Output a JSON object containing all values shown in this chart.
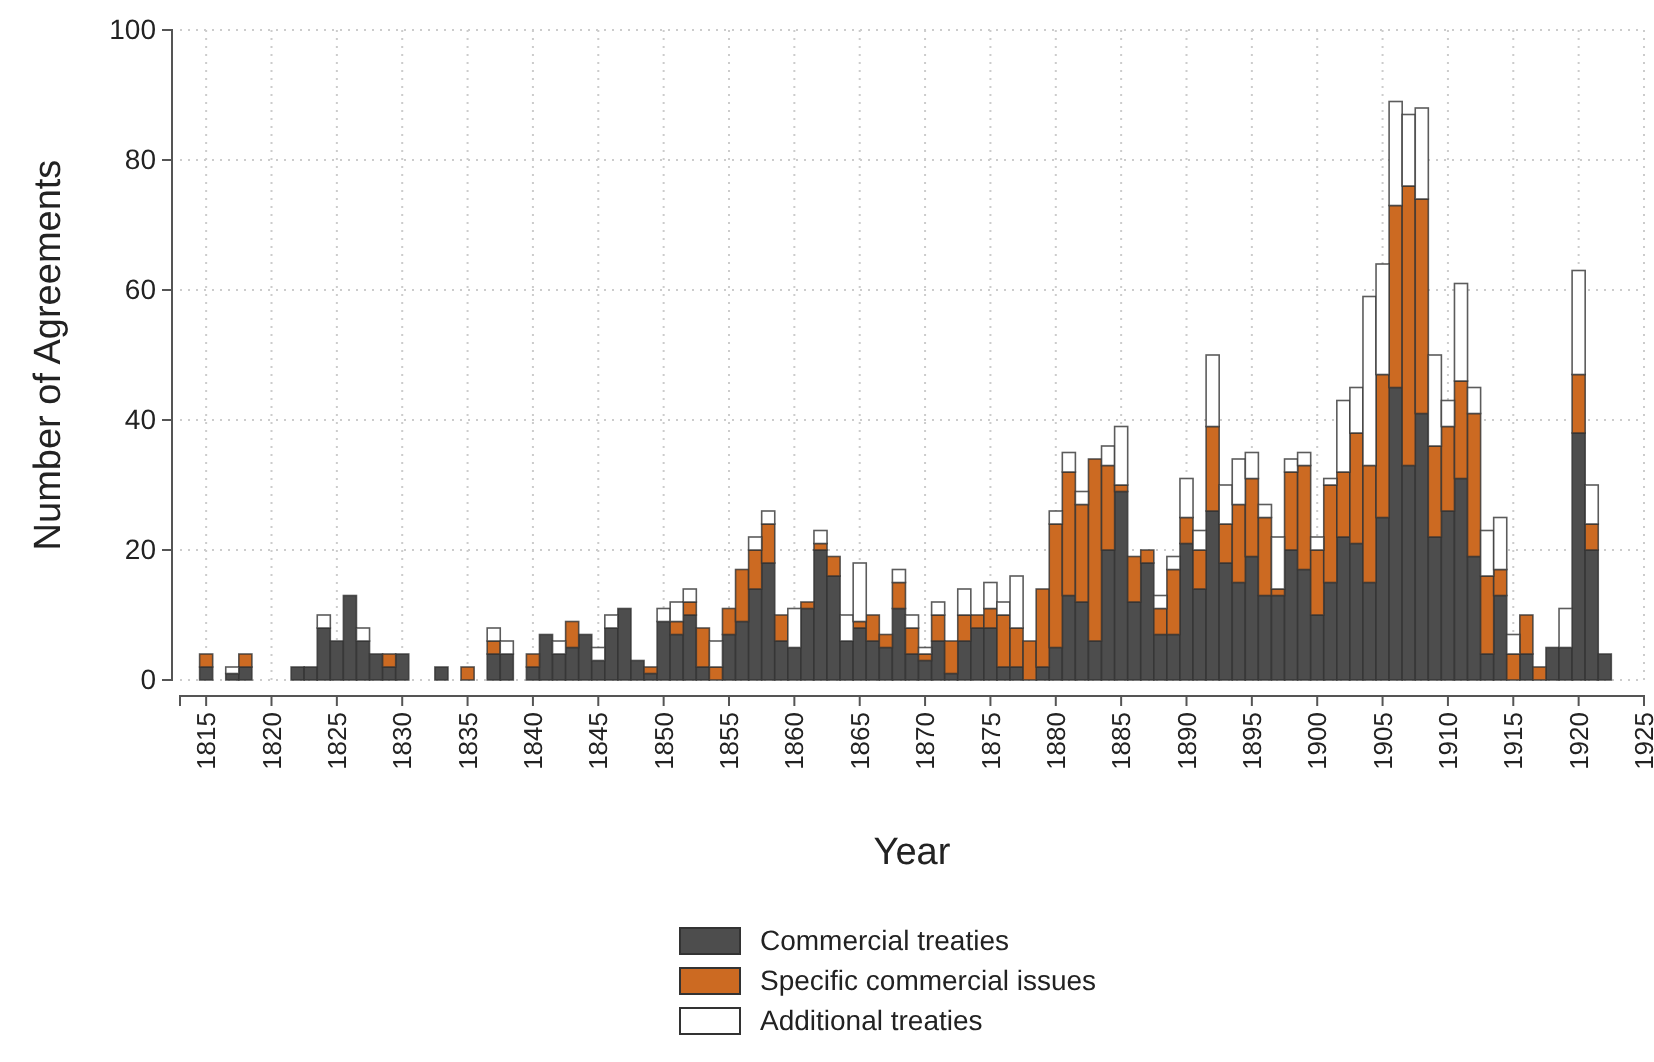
{
  "chart_data": {
    "type": "bar",
    "stacked": true,
    "xlabel": "Year",
    "ylabel": "Number of Agreements",
    "x": [
      1815,
      1816,
      1817,
      1818,
      1819,
      1820,
      1821,
      1822,
      1823,
      1824,
      1825,
      1826,
      1827,
      1828,
      1829,
      1830,
      1831,
      1832,
      1833,
      1834,
      1835,
      1836,
      1837,
      1838,
      1839,
      1840,
      1841,
      1842,
      1843,
      1844,
      1845,
      1846,
      1847,
      1848,
      1849,
      1850,
      1851,
      1852,
      1853,
      1854,
      1855,
      1856,
      1857,
      1858,
      1859,
      1860,
      1861,
      1862,
      1863,
      1864,
      1865,
      1866,
      1867,
      1868,
      1869,
      1870,
      1871,
      1872,
      1873,
      1874,
      1875,
      1876,
      1877,
      1878,
      1879,
      1880,
      1881,
      1882,
      1883,
      1884,
      1885,
      1886,
      1887,
      1888,
      1889,
      1890,
      1891,
      1892,
      1893,
      1894,
      1895,
      1896,
      1897,
      1898,
      1899,
      1900,
      1901,
      1902,
      1903,
      1904,
      1905,
      1906,
      1907,
      1908,
      1909,
      1910,
      1911,
      1912,
      1913,
      1914,
      1915,
      1916,
      1917,
      1918,
      1919,
      1920,
      1921,
      1922
    ],
    "series": [
      {
        "name": "Commercial treaties",
        "color": "#4d4d4d",
        "values": [
          2,
          0,
          1,
          2,
          0,
          0,
          0,
          2,
          2,
          8,
          6,
          13,
          6,
          4,
          2,
          4,
          0,
          0,
          2,
          0,
          0,
          0,
          4,
          4,
          0,
          2,
          7,
          4,
          5,
          7,
          3,
          8,
          11,
          3,
          1,
          9,
          7,
          10,
          2,
          0,
          7,
          9,
          14,
          18,
          6,
          5,
          11,
          20,
          16,
          6,
          8,
          6,
          5,
          11,
          4,
          3,
          6,
          1,
          6,
          8,
          8,
          2,
          2,
          0,
          2,
          5,
          13,
          12,
          6,
          20,
          29,
          12,
          18,
          7,
          7,
          21,
          14,
          26,
          18,
          15,
          19,
          13,
          13,
          20,
          17,
          10,
          15,
          22,
          21,
          15,
          25,
          45,
          33,
          41,
          22,
          26,
          31,
          19,
          4,
          13,
          0,
          4,
          0,
          5,
          5,
          38,
          20,
          4
        ]
      },
      {
        "name": "Specific commercial issues",
        "color": "#cc6a22",
        "values": [
          2,
          0,
          0,
          2,
          0,
          0,
          0,
          0,
          0,
          0,
          0,
          0,
          0,
          0,
          2,
          0,
          0,
          0,
          0,
          0,
          2,
          0,
          2,
          0,
          0,
          2,
          0,
          0,
          4,
          0,
          0,
          0,
          0,
          0,
          1,
          0,
          2,
          2,
          6,
          2,
          4,
          8,
          6,
          6,
          4,
          0,
          1,
          1,
          3,
          0,
          1,
          4,
          2,
          4,
          4,
          1,
          4,
          5,
          4,
          2,
          3,
          8,
          6,
          6,
          12,
          19,
          19,
          15,
          28,
          13,
          1,
          7,
          2,
          4,
          10,
          4,
          6,
          13,
          6,
          12,
          12,
          12,
          1,
          12,
          16,
          10,
          15,
          10,
          17,
          18,
          22,
          28,
          43,
          33,
          14,
          13,
          15,
          22,
          12,
          4,
          4,
          6,
          2,
          0,
          0,
          9,
          4,
          0
        ]
      },
      {
        "name": "Additional treaties",
        "color": "#ffffff",
        "values": [
          0,
          0,
          1,
          0,
          0,
          0,
          0,
          0,
          0,
          2,
          0,
          0,
          2,
          0,
          0,
          0,
          0,
          0,
          0,
          0,
          0,
          0,
          2,
          2,
          0,
          0,
          0,
          2,
          0,
          0,
          2,
          2,
          0,
          0,
          0,
          2,
          3,
          2,
          0,
          4,
          0,
          0,
          2,
          2,
          0,
          6,
          0,
          2,
          0,
          4,
          9,
          0,
          0,
          2,
          2,
          1,
          2,
          0,
          4,
          0,
          4,
          2,
          8,
          0,
          0,
          2,
          3,
          2,
          0,
          3,
          9,
          0,
          0,
          2,
          2,
          6,
          3,
          11,
          6,
          7,
          4,
          2,
          8,
          2,
          2,
          2,
          1,
          11,
          7,
          26,
          17,
          16,
          11,
          14,
          14,
          4,
          15,
          4,
          7,
          8,
          3,
          0,
          0,
          0,
          6,
          16,
          6,
          0
        ]
      }
    ],
    "xlim": [
      1813,
      1925
    ],
    "xticks": [
      1815,
      1820,
      1825,
      1830,
      1835,
      1840,
      1845,
      1850,
      1855,
      1860,
      1865,
      1870,
      1875,
      1880,
      1885,
      1890,
      1895,
      1900,
      1905,
      1910,
      1915,
      1920,
      1925
    ],
    "ylim": [
      0,
      100
    ],
    "yticks": [
      0,
      20,
      40,
      60,
      80,
      100
    ],
    "grid": true,
    "legend": "bottom"
  }
}
